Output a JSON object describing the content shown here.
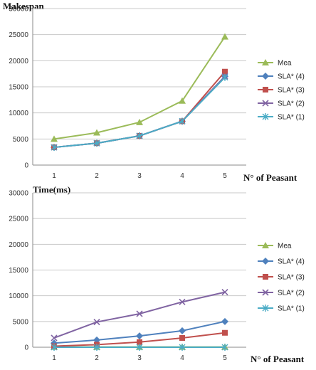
{
  "chart_data": [
    {
      "type": "line",
      "title": "",
      "ylabel": "Makespan",
      "xlabel": "N° of Peasant",
      "ylim": [
        0,
        30000
      ],
      "yticks": [
        0,
        5000,
        10000,
        15000,
        20000,
        25000,
        30000
      ],
      "categories": [
        "1",
        "2",
        "3",
        "4",
        "5"
      ],
      "grid": "horizontal",
      "legend": "right",
      "series": [
        {
          "name": "Mea",
          "color": "#9BBB59",
          "marker": "triangle",
          "values": [
            5000,
            6200,
            8200,
            12300,
            24600
          ]
        },
        {
          "name": "SLA* (4)",
          "color": "#4F81BD",
          "marker": "diamond",
          "values": [
            3400,
            4200,
            5600,
            8400,
            17000
          ]
        },
        {
          "name": "SLA* (3)",
          "color": "#C0504D",
          "marker": "square",
          "values": [
            3400,
            4200,
            5600,
            8400,
            17900
          ]
        },
        {
          "name": "SLA* (2)",
          "color": "#8064A2",
          "marker": "x",
          "values": [
            3400,
            4200,
            5600,
            8400,
            17000
          ]
        },
        {
          "name": "SLA* (1)",
          "color": "#4BACC6",
          "marker": "star",
          "values": [
            3400,
            4200,
            5600,
            8400,
            16800
          ]
        }
      ]
    },
    {
      "type": "line",
      "title": "",
      "ylabel": "Time(ms)",
      "xlabel": "N° of Peasant",
      "ylim": [
        0,
        30000
      ],
      "yticks": [
        0,
        5000,
        10000,
        15000,
        20000,
        25000,
        30000
      ],
      "categories": [
        "1",
        "2",
        "3",
        "4",
        "5"
      ],
      "grid": "horizontal",
      "legend": "right",
      "series": [
        {
          "name": "Mea",
          "color": "#9BBB59",
          "marker": "triangle",
          "values": [
            50,
            50,
            50,
            50,
            50
          ]
        },
        {
          "name": "SLA* (4)",
          "color": "#4F81BD",
          "marker": "diamond",
          "values": [
            800,
            1400,
            2200,
            3200,
            5000
          ]
        },
        {
          "name": "SLA* (3)",
          "color": "#C0504D",
          "marker": "square",
          "values": [
            200,
            500,
            1000,
            1800,
            2800
          ]
        },
        {
          "name": "SLA* (2)",
          "color": "#8064A2",
          "marker": "x",
          "values": [
            1800,
            4900,
            6500,
            8800,
            10700
          ]
        },
        {
          "name": "SLA* (1)",
          "color": "#4BACC6",
          "marker": "star",
          "values": [
            0,
            0,
            0,
            0,
            0
          ]
        }
      ]
    }
  ]
}
